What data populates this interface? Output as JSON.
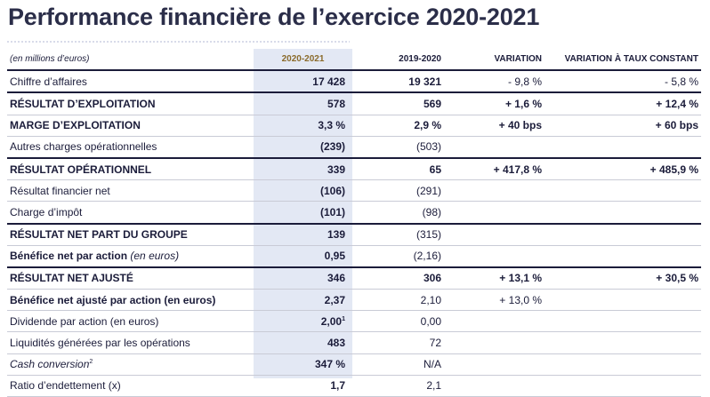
{
  "title": "Performance financière de l’exercice 2020-2021",
  "table": {
    "headers": [
      "(en millions d’euros)",
      "2020-2021",
      "2019-2020",
      "VARIATION",
      "VARIATION À TAUX CONSTANT"
    ],
    "rows": [
      {
        "label": "Chiffre d’affaires",
        "c1": "17 428",
        "c2": "19 321",
        "c3": "- 9,8 %",
        "c4": "- 5,8 %"
      },
      {
        "label": "RÉSULTAT D’EXPLOITATION",
        "c1": "578",
        "c2": "569",
        "c3": "+ 1,6 %",
        "c4": "+ 12,4 %"
      },
      {
        "label": "MARGE D’EXPLOITATION",
        "c1": "3,3 %",
        "c2": "2,9 %",
        "c3": "+ 40 bps",
        "c4": "+ 60 bps"
      },
      {
        "label": "Autres charges opérationnelles",
        "c1": "(239)",
        "c2": "(503)",
        "c3": "",
        "c4": ""
      },
      {
        "label": "RÉSULTAT OPÉRATIONNEL",
        "c1": "339",
        "c2": "65",
        "c3": "+ 417,8 %",
        "c4": "+ 485,9 %"
      },
      {
        "label": "Résultat financier net",
        "c1": "(106)",
        "c2": "(291)",
        "c3": "",
        "c4": ""
      },
      {
        "label": "Charge d’impôt",
        "c1": "(101)",
        "c2": "(98)",
        "c3": "",
        "c4": ""
      },
      {
        "label": "RÉSULTAT NET PART DU GROUPE",
        "c1": "139",
        "c2": "(315)",
        "c3": "",
        "c4": ""
      },
      {
        "label": "Bénéfice net par action",
        "label_suffix": "(en euros)",
        "c1": "0,95",
        "c2": "(2,16)",
        "c3": "",
        "c4": ""
      },
      {
        "label": "RÉSULTAT NET AJUSTÉ",
        "c1": "346",
        "c2": "306",
        "c3": "+ 13,1 %",
        "c4": "+ 30,5 %"
      },
      {
        "label": "Bénéfice net ajusté par action (en euros)",
        "c1": "2,37",
        "c2": "2,10",
        "c3": "+ 13,0 %",
        "c4": ""
      },
      {
        "label": "Dividende par action (en euros)",
        "c1": "2,00",
        "c1_sup": "1",
        "c2": "0,00",
        "c3": "",
        "c4": ""
      },
      {
        "label": "Liquidités générées par les opérations",
        "c1": "483",
        "c2": "72",
        "c3": "",
        "c4": ""
      },
      {
        "label": "Cash conversion",
        "label_sup": "2",
        "c1": "347 %",
        "c2": "N/A",
        "c3": "",
        "c4": ""
      },
      {
        "label": "Ratio d’endettement (x)",
        "c1": "1,7",
        "c2": "2,1",
        "c3": "",
        "c4": ""
      }
    ]
  }
}
